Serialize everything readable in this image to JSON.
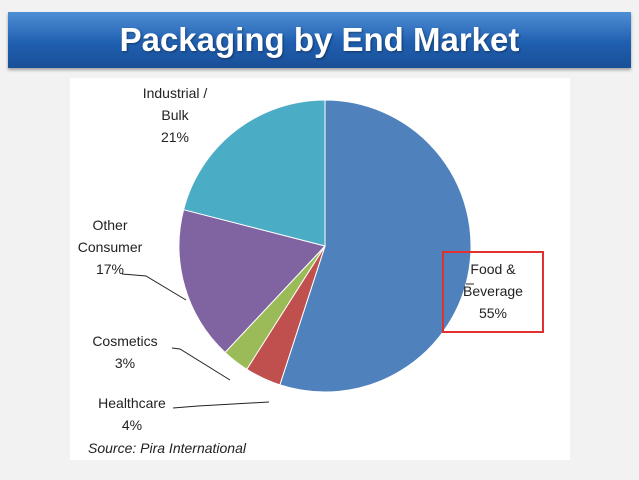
{
  "header": {
    "title": "Packaging by End Market"
  },
  "chart_data": {
    "type": "pie",
    "title": "Packaging by End Market",
    "slices": [
      {
        "name": "Food & Beverage",
        "lines": [
          "Food &",
          "Beverage"
        ],
        "value": 55,
        "label": "55%",
        "color": "#4f81bd",
        "highlighted": true
      },
      {
        "name": "Healthcare",
        "lines": [
          "Healthcare"
        ],
        "value": 4,
        "label": "4%",
        "color": "#c0504d"
      },
      {
        "name": "Cosmetics",
        "lines": [
          "Cosmetics"
        ],
        "value": 3,
        "label": "3%",
        "color": "#9bbb59"
      },
      {
        "name": "Other Consumer",
        "lines": [
          "Other",
          "Consumer"
        ],
        "value": 17,
        "label": "17%",
        "color": "#8064a2"
      },
      {
        "name": "Industrial / Bulk",
        "lines": [
          "Industrial /",
          "Bulk"
        ],
        "value": 21,
        "label": "21%",
        "color": "#4bacc6"
      }
    ],
    "highlight_color": "#e03030",
    "source": "Source: Pira International"
  }
}
